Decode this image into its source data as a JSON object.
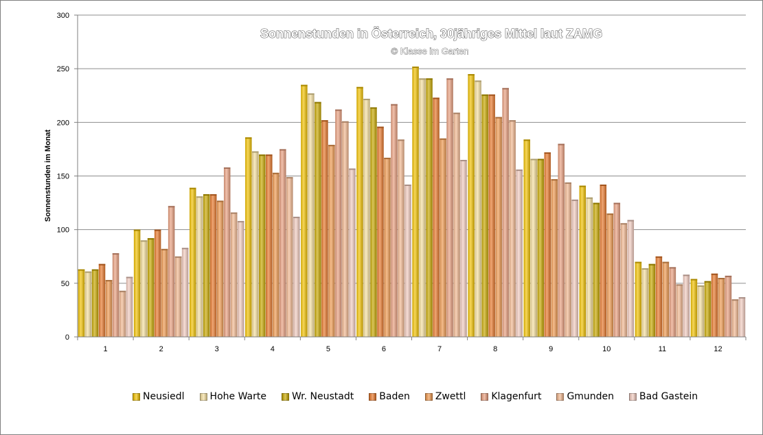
{
  "chart_data": {
    "type": "bar",
    "title": "Sonnenstunden in Österreich, 30jähriges Mittel laut ZAMG",
    "subtitle": "© Klasse im Garten",
    "xlabel": "",
    "ylabel": "Sonnenstunden im Monat",
    "ylim": [
      0,
      300
    ],
    "yticks": [
      0,
      50,
      100,
      150,
      200,
      250,
      300
    ],
    "grid": true,
    "legend_position": "bottom",
    "categories": [
      "1",
      "2",
      "3",
      "4",
      "5",
      "6",
      "7",
      "8",
      "9",
      "10",
      "11",
      "12"
    ],
    "series": [
      {
        "name": "Neusiedl",
        "color": "#F2C200",
        "values": [
          63,
          100,
          139,
          186,
          235,
          233,
          252,
          245,
          184,
          141,
          70,
          54
        ]
      },
      {
        "name": "Hohe Warte",
        "color": "#F6E0A0",
        "values": [
          61,
          90,
          131,
          173,
          227,
          222,
          241,
          239,
          166,
          130,
          64,
          48
        ]
      },
      {
        "name": "Wr. Neustadt",
        "color": "#C8A800",
        "values": [
          63,
          92,
          133,
          170,
          219,
          214,
          241,
          226,
          166,
          125,
          68,
          52
        ]
      },
      {
        "name": "Baden",
        "color": "#E8782A",
        "values": [
          68,
          100,
          133,
          170,
          202,
          196,
          223,
          226,
          172,
          142,
          75,
          59
        ]
      },
      {
        "name": "Zwettl",
        "color": "#F09A50",
        "values": [
          53,
          82,
          127,
          153,
          179,
          167,
          185,
          205,
          147,
          115,
          70,
          55
        ]
      },
      {
        "name": "Klagenfurt",
        "color": "#EAA080",
        "values": [
          78,
          122,
          158,
          175,
          212,
          217,
          241,
          232,
          180,
          125,
          65,
          57
        ]
      },
      {
        "name": "Gmunden",
        "color": "#F2B890",
        "values": [
          43,
          75,
          116,
          149,
          201,
          184,
          209,
          202,
          144,
          106,
          49,
          35
        ]
      },
      {
        "name": "Bad Gastein",
        "color": "#F2CCC0",
        "values": [
          56,
          83,
          108,
          112,
          157,
          142,
          165,
          156,
          128,
          109,
          58,
          37
        ]
      }
    ]
  }
}
